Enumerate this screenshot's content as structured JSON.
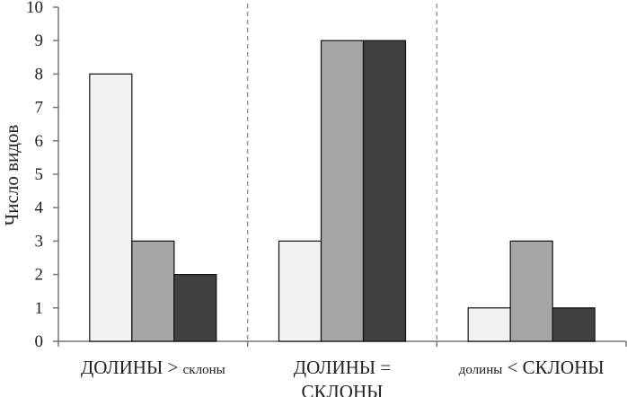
{
  "chart_data": {
    "type": "bar",
    "ylabel": "Число видов",
    "ylim": [
      0,
      10
    ],
    "yticks": [
      0,
      1,
      2,
      3,
      4,
      5,
      6,
      7,
      8,
      9,
      10
    ],
    "grid": false,
    "group_separators": "dashed vertical lines",
    "categories": [
      {
        "parts": [
          "ДОЛИНЫ > ",
          "склоны"
        ],
        "lines": null
      },
      {
        "parts": null,
        "lines": [
          "ДОЛИНЫ =",
          "СКЛОНЫ"
        ]
      },
      {
        "parts": [
          "долины",
          " < СКЛОНЫ"
        ],
        "lines": null
      }
    ],
    "series": [
      {
        "values": [
          8,
          3,
          1
        ],
        "color": "#f2f2f2"
      },
      {
        "values": [
          3,
          9,
          3
        ],
        "color": "#a6a6a6"
      },
      {
        "values": [
          2,
          9,
          1
        ],
        "color": "#404040"
      }
    ]
  }
}
